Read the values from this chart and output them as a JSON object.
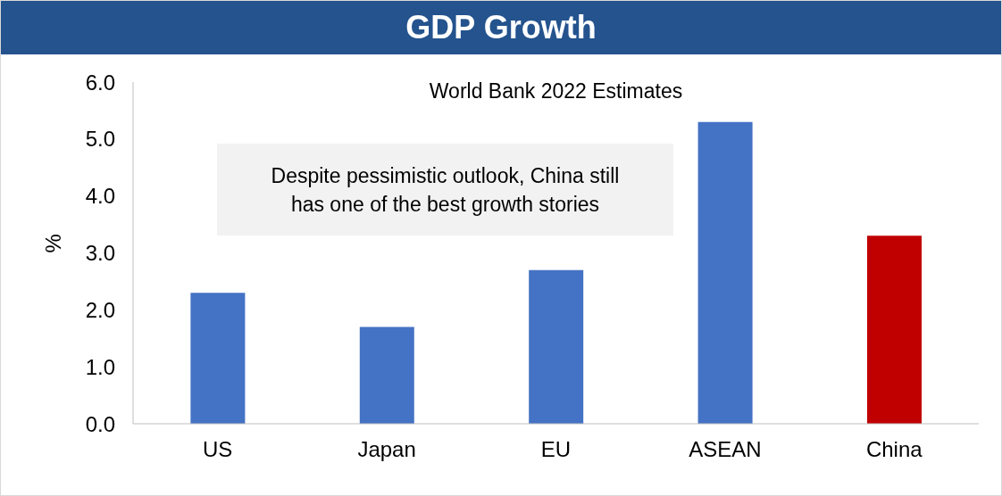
{
  "chart_data": {
    "type": "bar",
    "title": "GDP Growth",
    "subtitle": "World Bank 2022 Estimates",
    "ylabel": "%",
    "annotations": [
      "Despite pessimistic outlook, China still has one of the best growth stories"
    ],
    "categories": [
      "US",
      "Japan",
      "EU",
      "ASEAN",
      "China"
    ],
    "values": [
      2.3,
      1.7,
      2.7,
      5.3,
      3.3
    ],
    "colors": [
      "#4472c4",
      "#4472c4",
      "#4472c4",
      "#4472c4",
      "#c00000"
    ],
    "ylim": [
      0,
      6
    ],
    "yticks": [
      {
        "value": 0,
        "label": "0.0"
      },
      {
        "value": 1,
        "label": "1.0"
      },
      {
        "value": 2,
        "label": "2.0"
      },
      {
        "value": 3,
        "label": "3.0"
      },
      {
        "value": 4,
        "label": "4.0"
      },
      {
        "value": 5,
        "label": "5.0"
      },
      {
        "value": 6,
        "label": "6.0"
      }
    ]
  }
}
